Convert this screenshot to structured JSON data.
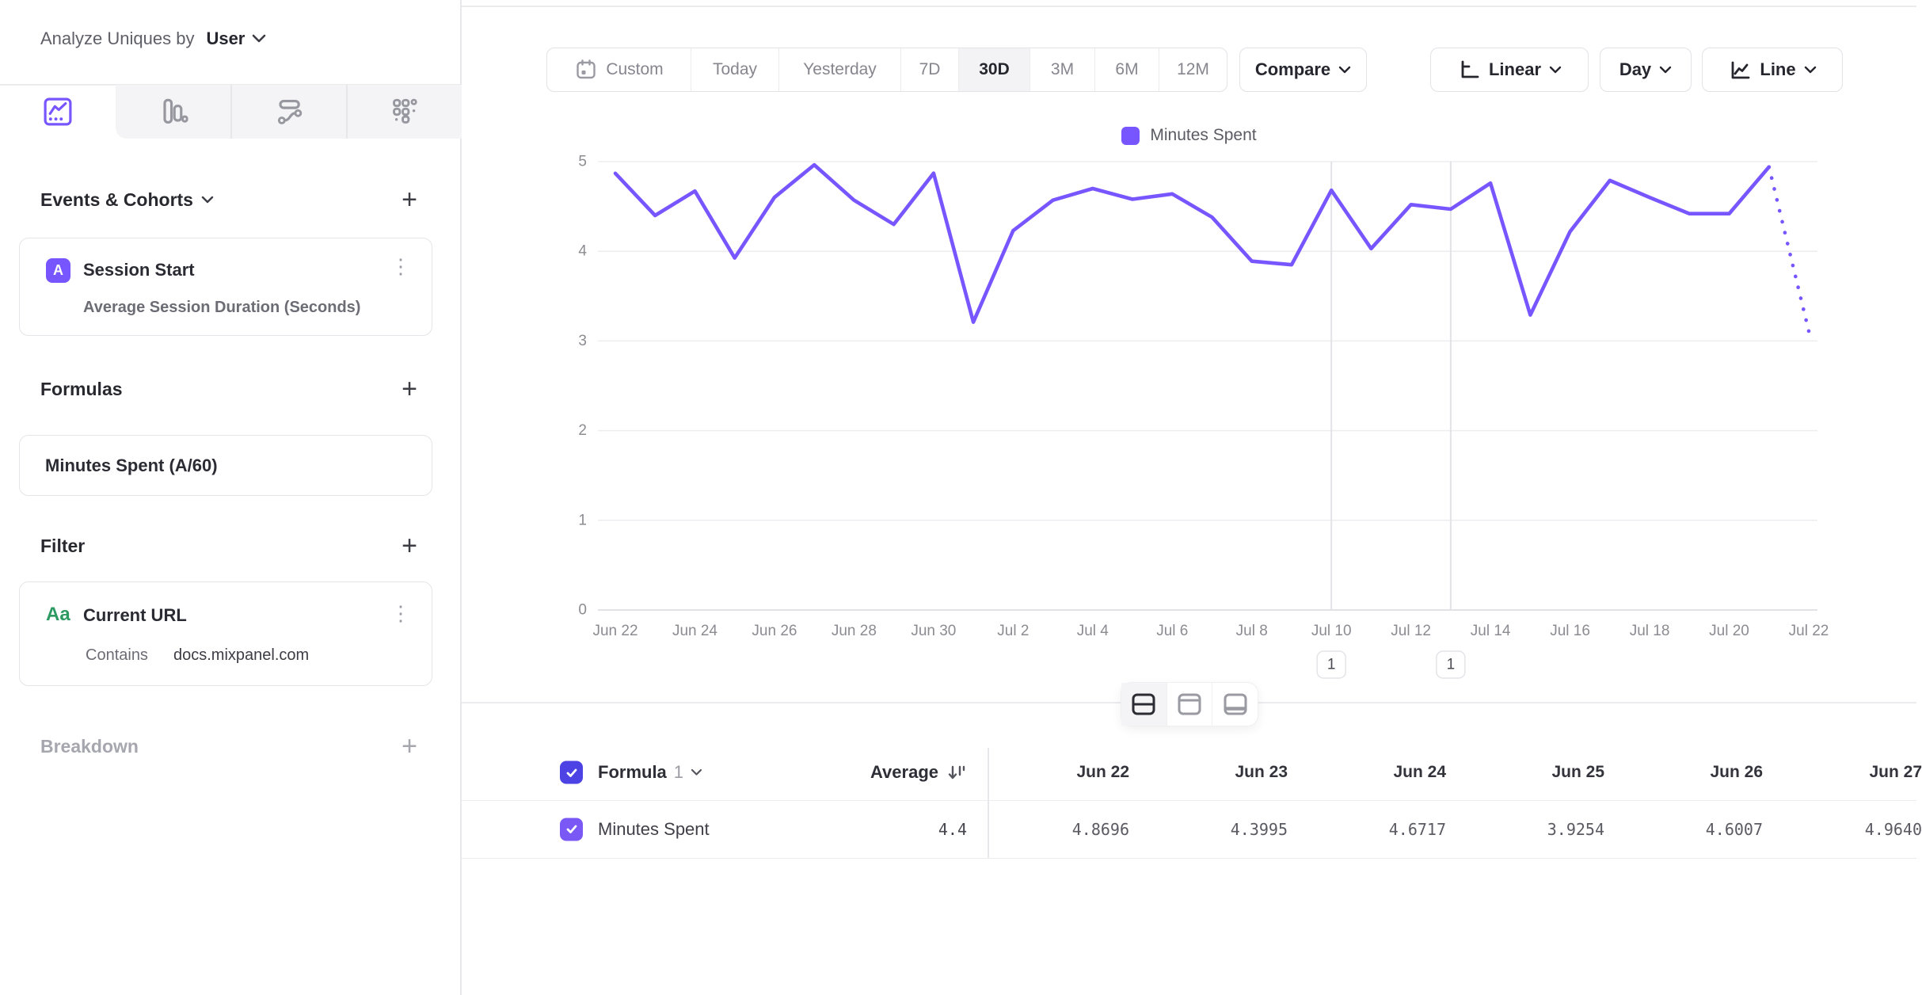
{
  "sidebar": {
    "analyze_label": "Analyze Uniques by",
    "analyze_value": "User",
    "tab_icons": [
      "line-chart-icon",
      "bar-chart-icon",
      "flow-chart-icon",
      "metric-grid-icon"
    ],
    "selected_tab": "line-chart-icon",
    "events_section": {
      "title": "Events & Cohorts",
      "add_label": "+"
    },
    "event_card": {
      "badge": "A",
      "title": "Session Start",
      "subtitle": "Average Session Duration (Seconds)"
    },
    "formulas_section": {
      "title": "Formulas",
      "add_label": "+"
    },
    "formula_card": {
      "text": "Minutes Spent (A/60)"
    },
    "filter_section": {
      "title": "Filter",
      "add_label": "+"
    },
    "filter_card": {
      "type_glyph": "Aa",
      "title": "Current URL",
      "operator": "Contains",
      "value": "docs.mixpanel.com"
    },
    "breakdown_section": {
      "title": "Breakdown",
      "add_label": "+"
    },
    "kebab_glyph": "⋮"
  },
  "toolbar": {
    "date_ranges": [
      "Custom",
      "Today",
      "Yesterday",
      "7D",
      "30D",
      "3M",
      "6M",
      "12M"
    ],
    "selected_range": "30D",
    "compare_label": "Compare",
    "scale_label": "Linear",
    "granularity_label": "Day",
    "chart_type_label": "Line"
  },
  "legend": {
    "series_label": "Minutes Spent"
  },
  "chart_data": {
    "type": "line",
    "title": "",
    "xlabel": "",
    "ylabel": "",
    "ylim": [
      0,
      5
    ],
    "yticks": [
      0,
      1,
      2,
      3,
      4,
      5
    ],
    "grid": "horizontal",
    "legend_position": "top-center",
    "categories": [
      "Jun 22",
      "Jun 23",
      "Jun 24",
      "Jun 25",
      "Jun 26",
      "Jun 27",
      "Jun 28",
      "Jun 29",
      "Jun 30",
      "Jul 1",
      "Jul 2",
      "Jul 3",
      "Jul 4",
      "Jul 5",
      "Jul 6",
      "Jul 7",
      "Jul 8",
      "Jul 9",
      "Jul 10",
      "Jul 11",
      "Jul 12",
      "Jul 13",
      "Jul 14",
      "Jul 15",
      "Jul 16",
      "Jul 17",
      "Jul 18",
      "Jul 19",
      "Jul 20",
      "Jul 21",
      "Jul 22"
    ],
    "tick_labels": [
      "Jun 22",
      "Jun 24",
      "Jun 26",
      "Jun 28",
      "Jun 30",
      "Jul 2",
      "Jul 4",
      "Jul 6",
      "Jul 8",
      "Jul 10",
      "Jul 12",
      "Jul 14",
      "Jul 16",
      "Jul 18",
      "Jul 20",
      "Jul 22"
    ],
    "series": [
      {
        "name": "Minutes Spent",
        "color": "#7856FF",
        "values": [
          4.8696,
          4.3995,
          4.6717,
          3.9254,
          4.6007,
          4.964,
          4.57,
          4.3,
          4.87,
          3.21,
          4.23,
          4.57,
          4.7,
          4.58,
          4.64,
          4.38,
          3.89,
          3.85,
          4.68,
          4.03,
          4.52,
          4.47,
          4.76,
          3.29,
          4.22,
          4.79,
          4.6,
          4.42,
          4.42,
          4.94,
          3.11
        ],
        "incomplete_last_segment": true
      }
    ],
    "annotations": [
      {
        "date": "Jul 10",
        "label": "1"
      },
      {
        "date": "Jul 13",
        "label": "1"
      }
    ]
  },
  "view_toggle": {
    "icons": [
      "split-view-icon",
      "chart-only-icon",
      "table-only-icon"
    ],
    "selected": "split-view-icon"
  },
  "table": {
    "group_label": "Formula",
    "group_number": "1",
    "average_label": "Average",
    "columns": [
      "Jun 22",
      "Jun 23",
      "Jun 24",
      "Jun 25",
      "Jun 26",
      "Jun 27"
    ],
    "row": {
      "label": "Minutes Spent",
      "average": "4.4",
      "values": [
        "4.8696",
        "4.3995",
        "4.6717",
        "3.9254",
        "4.6007",
        "4.9640"
      ]
    }
  },
  "colors": {
    "accent": "#7856FF",
    "accent_dark": "#4D42E4",
    "green": "#2D9A62",
    "gridline": "#ededf0",
    "axis_line": "#d9d9de"
  }
}
